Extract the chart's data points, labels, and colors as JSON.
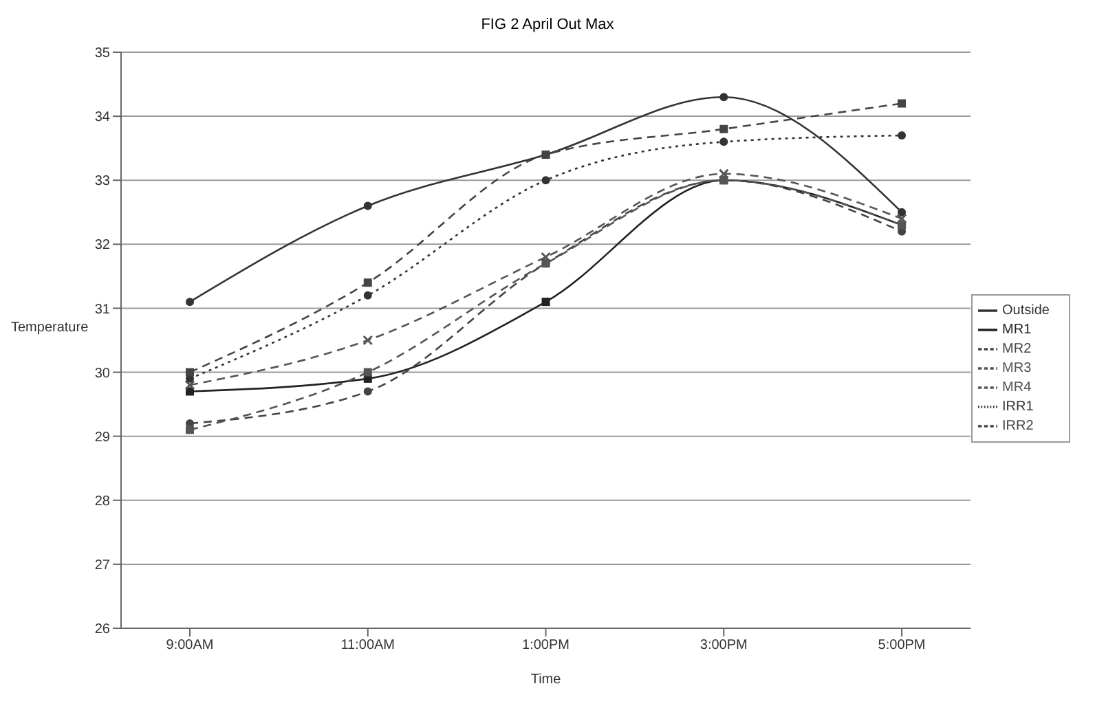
{
  "chart_data": {
    "type": "line",
    "title": "FIG 2 April Out Max",
    "xlabel": "Time",
    "ylabel": "Temperature",
    "categories": [
      "9:00AM",
      "11:00AM",
      "1:00PM",
      "3:00PM",
      "5:00PM"
    ],
    "series": [
      {
        "name": "Outside",
        "color": "#333333",
        "values": [
          31.1,
          32.6,
          33.4,
          34.3,
          32.5
        ],
        "line_style": "solid",
        "marker": "circle"
      },
      {
        "name": "MR1",
        "color": "#222222",
        "values": [
          29.7,
          29.9,
          31.1,
          33.0,
          32.3
        ],
        "line_style": "solid",
        "marker": "square"
      },
      {
        "name": "MR2",
        "color": "#444444",
        "values": [
          29.2,
          29.7,
          31.7,
          33.0,
          32.2
        ],
        "line_style": "dashed",
        "marker": "circle"
      },
      {
        "name": "MR3",
        "color": "#555555",
        "values": [
          29.8,
          30.5,
          31.8,
          33.1,
          32.4
        ],
        "line_style": "dashed",
        "marker": "cross"
      },
      {
        "name": "MR4",
        "color": "#555555",
        "values": [
          29.1,
          30.0,
          31.7,
          33.0,
          32.3
        ],
        "line_style": "dashed",
        "marker": "square"
      },
      {
        "name": "IRR1",
        "color": "#333333",
        "values": [
          29.9,
          31.2,
          33.0,
          33.6,
          33.7
        ],
        "line_style": "dotted",
        "marker": "circle"
      },
      {
        "name": "IRR2",
        "color": "#444444",
        "values": [
          30.0,
          31.4,
          33.4,
          33.8,
          34.2
        ],
        "line_style": "dashed",
        "marker": "square"
      }
    ],
    "ylim": [
      26,
      35
    ],
    "yticks": [
      26,
      27,
      28,
      29,
      30,
      31,
      32,
      33,
      34,
      35
    ],
    "grid": "y",
    "legend": "right"
  }
}
